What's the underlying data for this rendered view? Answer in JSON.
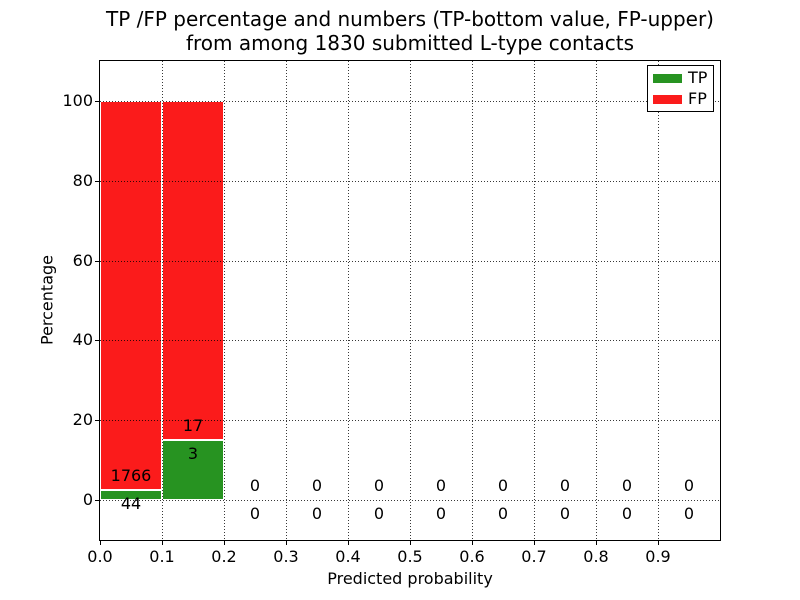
{
  "chart_data": {
    "type": "bar",
    "stacked": true,
    "title_line1": "TP /FP percentage and numbers (TP-bottom value, FP-upper)",
    "title_line2": "from among 1830 submitted L-type contacts",
    "xlabel": "Predicted probability",
    "ylabel": "Percentage",
    "xlim": [
      0,
      1
    ],
    "ylim": [
      -10,
      110
    ],
    "grid": true,
    "xtick_values": [
      0,
      0.1,
      0.2,
      0.3,
      0.4,
      0.5,
      0.6,
      0.7,
      0.8,
      0.9
    ],
    "xtick_labels": [
      "0.0",
      "0.1",
      "0.2",
      "0.3",
      "0.4",
      "0.5",
      "0.6",
      "0.7",
      "0.8",
      "0.9"
    ],
    "ytick_values": [
      0,
      20,
      40,
      60,
      80,
      100
    ],
    "ytick_labels": [
      "0",
      "20",
      "40",
      "60",
      "80",
      "100"
    ],
    "legend": {
      "position": "upper right",
      "items": [
        {
          "label": "TP",
          "color": "#279321"
        },
        {
          "label": "FP",
          "color": "#fb1b1b"
        }
      ]
    },
    "bars": [
      {
        "x0": 0.0,
        "x1": 0.1,
        "tp": 44,
        "fp": 1766,
        "tp_pct": 2.43,
        "fp_pct": 97.57
      },
      {
        "x0": 0.1,
        "x1": 0.2,
        "tp": 3,
        "fp": 17,
        "tp_pct": 15.0,
        "fp_pct": 85.0
      },
      {
        "x0": 0.2,
        "x1": 0.3,
        "tp": 0,
        "fp": 0,
        "tp_pct": 0,
        "fp_pct": 0
      },
      {
        "x0": 0.3,
        "x1": 0.4,
        "tp": 0,
        "fp": 0,
        "tp_pct": 0,
        "fp_pct": 0
      },
      {
        "x0": 0.4,
        "x1": 0.5,
        "tp": 0,
        "fp": 0,
        "tp_pct": 0,
        "fp_pct": 0
      },
      {
        "x0": 0.5,
        "x1": 0.6,
        "tp": 0,
        "fp": 0,
        "tp_pct": 0,
        "fp_pct": 0
      },
      {
        "x0": 0.6,
        "x1": 0.7,
        "tp": 0,
        "fp": 0,
        "tp_pct": 0,
        "fp_pct": 0
      },
      {
        "x0": 0.7,
        "x1": 0.8,
        "tp": 0,
        "fp": 0,
        "tp_pct": 0,
        "fp_pct": 0
      },
      {
        "x0": 0.8,
        "x1": 0.9,
        "tp": 0,
        "fp": 0,
        "tp_pct": 0,
        "fp_pct": 0
      },
      {
        "x0": 0.9,
        "x1": 1.0,
        "tp": 0,
        "fp": 0,
        "tp_pct": 0,
        "fp_pct": 0
      }
    ],
    "count_label_offset_pct": 3.5
  }
}
